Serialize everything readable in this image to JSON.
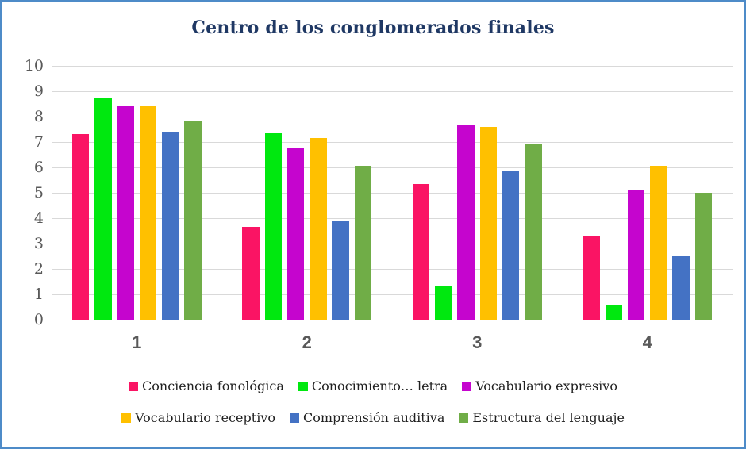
{
  "chart_data": {
    "type": "bar",
    "title": "Centro de los conglomerados finales",
    "categories": [
      "1",
      "2",
      "3",
      "4"
    ],
    "series": [
      {
        "name": "Conciencia fonológica",
        "color": "#FA1464",
        "values": [
          7.3,
          3.65,
          5.35,
          3.3
        ]
      },
      {
        "name": "Conocimiento… letra",
        "color": "#00E80F",
        "values": [
          8.75,
          7.35,
          1.35,
          0.55
        ]
      },
      {
        "name": "Vocabulario expresivo",
        "color": "#C505CE",
        "values": [
          8.45,
          6.75,
          7.65,
          5.1
        ]
      },
      {
        "name": "Vocabulario receptivo",
        "color": "#FFC000",
        "values": [
          8.4,
          7.15,
          7.6,
          6.05
        ]
      },
      {
        "name": "Comprensión auditiva",
        "color": "#4472C4",
        "values": [
          7.4,
          3.9,
          5.85,
          2.5
        ]
      },
      {
        "name": "Estructura del lenguaje",
        "color": "#70AD47",
        "values": [
          7.8,
          6.05,
          6.95,
          5.0
        ]
      }
    ],
    "ylim": [
      0,
      10
    ],
    "ytick_step": 1,
    "grid": true,
    "legend_position": "bottom",
    "legend_rows": 2
  },
  "colors": {
    "frame_border": "#4E8BC8",
    "title_text": "#1F3864",
    "axis_tick_text": "#595959",
    "gridline": "#D9D9D9",
    "legend_text": "#1F1F1F"
  }
}
